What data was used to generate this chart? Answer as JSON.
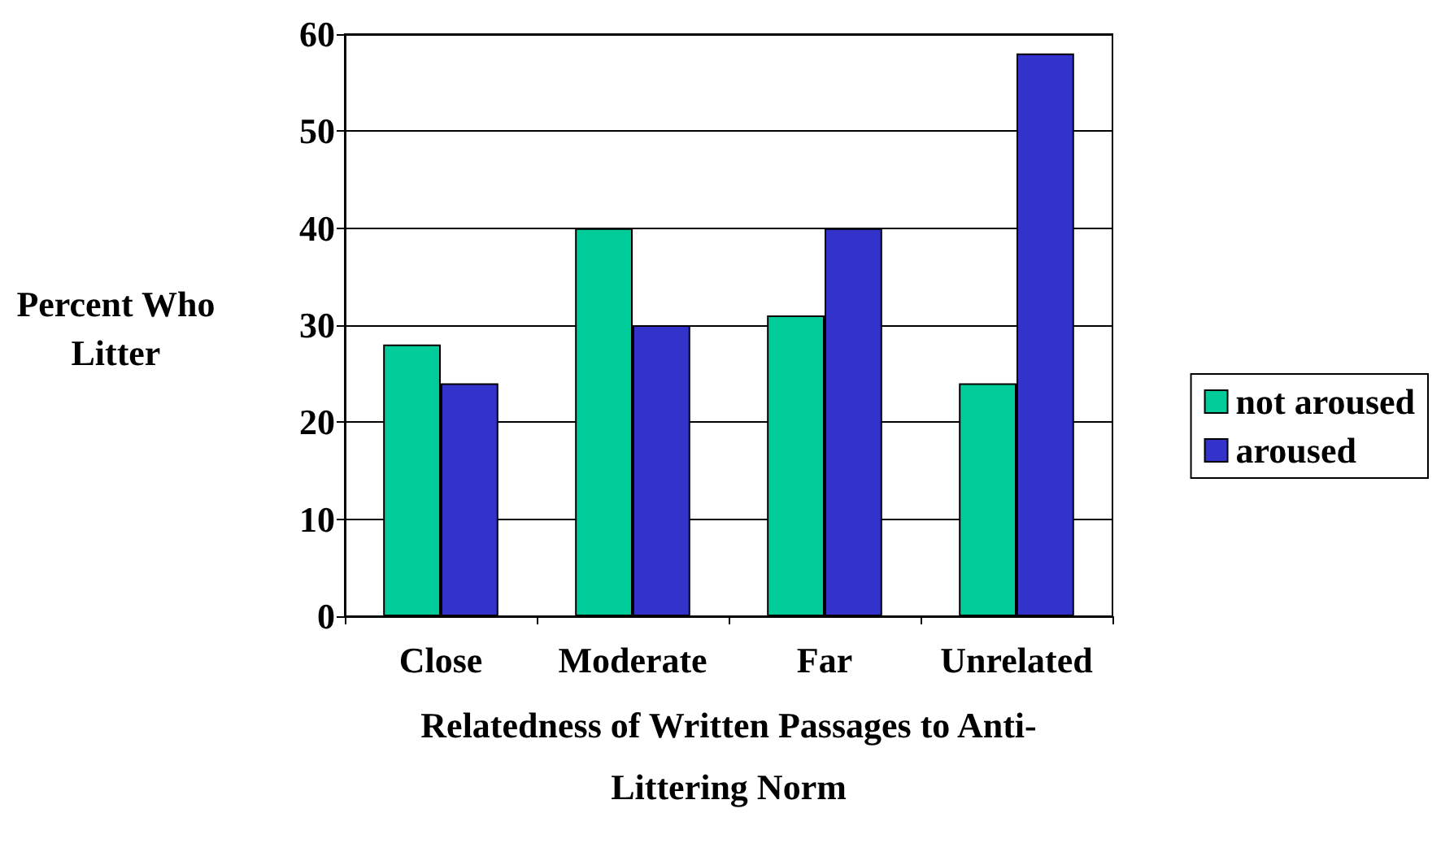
{
  "chart_data": {
    "type": "bar",
    "xlabel": "Relatedness of Written Passages to Anti-\nLittering Norm",
    "ylabel": "Percent Who\nLitter",
    "categories": [
      "Close",
      "Moderate",
      "Far",
      "Unrelated"
    ],
    "series": [
      {
        "name": "not aroused",
        "color": "#00cc99",
        "values": [
          28,
          40,
          31,
          24
        ]
      },
      {
        "name": "aroused",
        "color": "#3333cc",
        "values": [
          24,
          30,
          40,
          58
        ]
      }
    ],
    "ylim": [
      0,
      60
    ],
    "yticks": [
      0,
      10,
      20,
      30,
      40,
      50,
      60
    ],
    "grid": "y",
    "legend": "right"
  }
}
